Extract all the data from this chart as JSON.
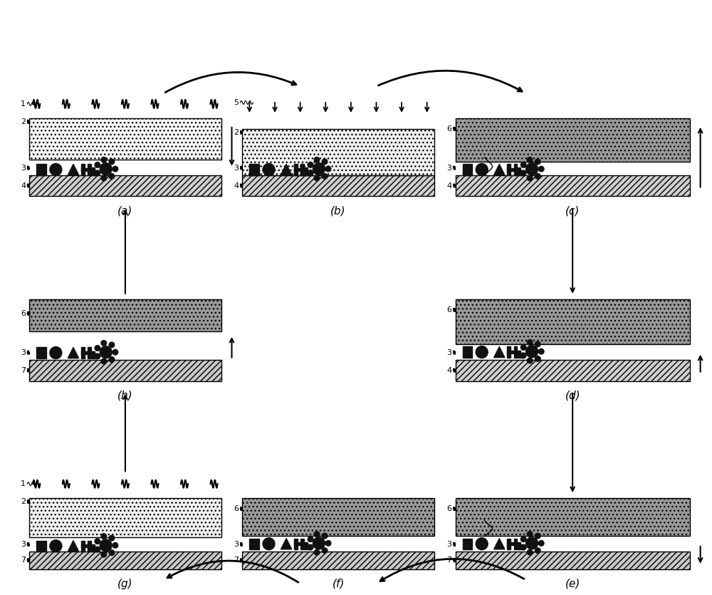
{
  "bg": "#ffffff",
  "panels": [
    "a",
    "b",
    "c",
    "d",
    "e",
    "f",
    "g",
    "h"
  ],
  "smp_light_color": "#f0f0f0",
  "smp_dark_color": "#999999",
  "hatch_color": "#555555",
  "substrate_color": "#cccccc",
  "black": "#111111"
}
